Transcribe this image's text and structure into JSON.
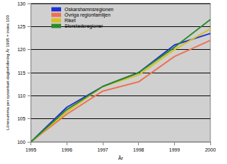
{
  "chart_data": {
    "type": "line",
    "x_label": "År",
    "y_label": "Lönesumma per sysselsatt dagbefolkning År 1995 = index 100",
    "categories": [
      "1995",
      "1996",
      "1997",
      "1998",
      "1999",
      "2000"
    ],
    "series": [
      {
        "name": "Oskarshamnsregionen",
        "color": "#1f2fd6",
        "values": [
          100,
          107.5,
          112,
          115,
          121,
          123.5
        ]
      },
      {
        "name": "Övriga regionfamiljen",
        "color": "#f07050",
        "values": [
          100,
          106,
          111,
          113,
          118.5,
          122
        ]
      },
      {
        "name": "Riket",
        "color": "#d8c020",
        "values": [
          100,
          106.5,
          112,
          114.5,
          120,
          124.5
        ]
      },
      {
        "name": "Storstadsregioner",
        "color": "#2a8a2a",
        "values": [
          100,
          107,
          112,
          115,
          120.5,
          126.5
        ]
      }
    ],
    "ylim": [
      100,
      130
    ],
    "yticks": [
      100,
      105,
      110,
      115,
      120,
      125,
      130
    ],
    "grid": true,
    "legend": "upper left"
  }
}
